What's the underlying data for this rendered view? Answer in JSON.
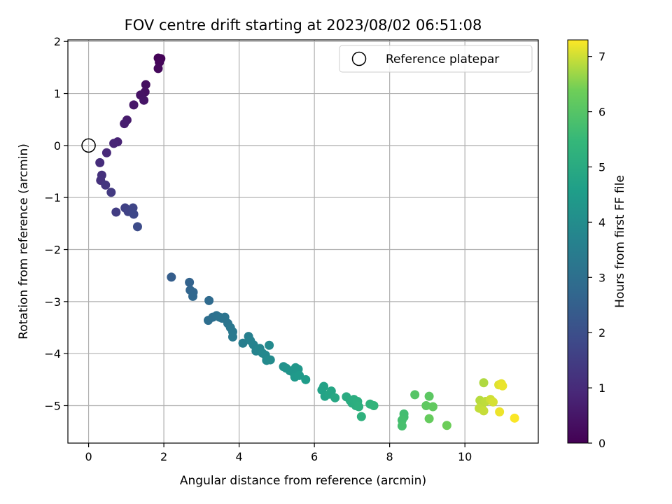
{
  "chart_data": {
    "type": "scatter",
    "title": "FOV centre drift starting at 2023/08/02 06:51:08",
    "xlabel": "Angular distance from reference (arcmin)",
    "ylabel": "Rotation from reference (arcmin)",
    "xlim": [
      -0.55,
      11.95
    ],
    "ylim": [
      -5.72,
      2.03
    ],
    "xticks": [
      0,
      2,
      4,
      6,
      8,
      10
    ],
    "xtick_labels": [
      "0",
      "2",
      "4",
      "6",
      "8",
      "10"
    ],
    "yticks": [
      2,
      1,
      0,
      -1,
      -2,
      -3,
      -4,
      -5
    ],
    "ytick_labels": [
      "2",
      "1",
      "0",
      "−1",
      "−2",
      "−3",
      "−4",
      "−5"
    ],
    "grid": true,
    "legend": {
      "position": "top-right",
      "entries": [
        "Reference platepar"
      ]
    },
    "reference_point": {
      "x": 0,
      "y": 0
    },
    "colorbar": {
      "label": "Hours from first FF file",
      "min": 0,
      "max": 7.3,
      "ticks": [
        0,
        1,
        2,
        3,
        4,
        5,
        6,
        7
      ],
      "tick_labels": [
        "0",
        "1",
        "2",
        "3",
        "4",
        "5",
        "6",
        "7"
      ],
      "colormap": "viridis"
    },
    "points": [
      {
        "x": 1.85,
        "y": 1.68,
        "t": 0.05
      },
      {
        "x": 1.92,
        "y": 1.67,
        "t": 0.08
      },
      {
        "x": 1.88,
        "y": 1.6,
        "t": 0.12
      },
      {
        "x": 1.85,
        "y": 1.48,
        "t": 0.18
      },
      {
        "x": 1.52,
        "y": 1.17,
        "t": 0.3
      },
      {
        "x": 1.5,
        "y": 1.03,
        "t": 0.35
      },
      {
        "x": 1.38,
        "y": 0.97,
        "t": 0.4
      },
      {
        "x": 1.47,
        "y": 0.87,
        "t": 0.45
      },
      {
        "x": 1.2,
        "y": 0.78,
        "t": 0.52
      },
      {
        "x": 1.02,
        "y": 0.49,
        "t": 0.62
      },
      {
        "x": 0.95,
        "y": 0.42,
        "t": 0.68
      },
      {
        "x": 0.77,
        "y": 0.07,
        "t": 0.8
      },
      {
        "x": 0.67,
        "y": 0.04,
        "t": 0.85
      },
      {
        "x": 0.48,
        "y": -0.14,
        "t": 0.95
      },
      {
        "x": 0.3,
        "y": -0.33,
        "t": 1.05
      },
      {
        "x": 0.35,
        "y": -0.57,
        "t": 1.15
      },
      {
        "x": 0.32,
        "y": -0.67,
        "t": 1.2
      },
      {
        "x": 0.45,
        "y": -0.76,
        "t": 1.3
      },
      {
        "x": 0.6,
        "y": -0.9,
        "t": 1.4
      },
      {
        "x": 0.73,
        "y": -1.28,
        "t": 1.5
      },
      {
        "x": 0.97,
        "y": -1.2,
        "t": 1.6
      },
      {
        "x": 1.05,
        "y": -1.27,
        "t": 1.65
      },
      {
        "x": 1.18,
        "y": -1.2,
        "t": 1.72
      },
      {
        "x": 1.2,
        "y": -1.32,
        "t": 1.78
      },
      {
        "x": 1.3,
        "y": -1.56,
        "t": 1.9
      },
      {
        "x": 2.2,
        "y": -2.53,
        "t": 2.45
      },
      {
        "x": 2.68,
        "y": -2.63,
        "t": 2.6
      },
      {
        "x": 2.7,
        "y": -2.78,
        "t": 2.65
      },
      {
        "x": 2.78,
        "y": -2.82,
        "t": 2.7
      },
      {
        "x": 2.77,
        "y": -2.9,
        "t": 2.75
      },
      {
        "x": 3.2,
        "y": -2.98,
        "t": 2.85
      },
      {
        "x": 3.18,
        "y": -3.36,
        "t": 2.95
      },
      {
        "x": 3.3,
        "y": -3.3,
        "t": 3.0
      },
      {
        "x": 3.4,
        "y": -3.27,
        "t": 3.05
      },
      {
        "x": 3.48,
        "y": -3.3,
        "t": 3.08
      },
      {
        "x": 3.55,
        "y": -3.32,
        "t": 3.12
      },
      {
        "x": 3.62,
        "y": -3.3,
        "t": 3.15
      },
      {
        "x": 3.7,
        "y": -3.42,
        "t": 3.2
      },
      {
        "x": 3.77,
        "y": -3.5,
        "t": 3.25
      },
      {
        "x": 3.83,
        "y": -3.58,
        "t": 3.3
      },
      {
        "x": 3.83,
        "y": -3.68,
        "t": 3.35
      },
      {
        "x": 4.1,
        "y": -3.8,
        "t": 3.5
      },
      {
        "x": 4.25,
        "y": -3.67,
        "t": 3.55
      },
      {
        "x": 4.3,
        "y": -3.75,
        "t": 3.6
      },
      {
        "x": 4.38,
        "y": -3.83,
        "t": 3.65
      },
      {
        "x": 4.45,
        "y": -3.95,
        "t": 3.7
      },
      {
        "x": 4.55,
        "y": -3.9,
        "t": 3.75
      },
      {
        "x": 4.62,
        "y": -3.99,
        "t": 3.8
      },
      {
        "x": 4.7,
        "y": -4.03,
        "t": 3.85
      },
      {
        "x": 4.73,
        "y": -4.13,
        "t": 3.9
      },
      {
        "x": 4.8,
        "y": -3.84,
        "t": 3.92
      },
      {
        "x": 4.83,
        "y": -4.12,
        "t": 3.95
      },
      {
        "x": 5.18,
        "y": -4.25,
        "t": 4.15
      },
      {
        "x": 5.25,
        "y": -4.28,
        "t": 4.2
      },
      {
        "x": 5.35,
        "y": -4.33,
        "t": 4.25
      },
      {
        "x": 5.45,
        "y": -4.37,
        "t": 4.3
      },
      {
        "x": 5.5,
        "y": -4.27,
        "t": 4.32
      },
      {
        "x": 5.57,
        "y": -4.3,
        "t": 4.35
      },
      {
        "x": 5.48,
        "y": -4.45,
        "t": 4.4
      },
      {
        "x": 5.6,
        "y": -4.42,
        "t": 4.42
      },
      {
        "x": 5.77,
        "y": -4.5,
        "t": 4.5
      },
      {
        "x": 6.2,
        "y": -4.7,
        "t": 4.7
      },
      {
        "x": 6.25,
        "y": -4.63,
        "t": 4.72
      },
      {
        "x": 6.28,
        "y": -4.82,
        "t": 4.75
      },
      {
        "x": 6.4,
        "y": -4.78,
        "t": 4.8
      },
      {
        "x": 6.45,
        "y": -4.72,
        "t": 4.83
      },
      {
        "x": 6.55,
        "y": -4.85,
        "t": 4.88
      },
      {
        "x": 6.85,
        "y": -4.83,
        "t": 5.0
      },
      {
        "x": 6.95,
        "y": -4.9,
        "t": 5.05
      },
      {
        "x": 7.0,
        "y": -4.95,
        "t": 5.08
      },
      {
        "x": 7.05,
        "y": -4.88,
        "t": 5.1
      },
      {
        "x": 7.1,
        "y": -5.0,
        "t": 5.12
      },
      {
        "x": 7.15,
        "y": -4.92,
        "t": 5.15
      },
      {
        "x": 7.18,
        "y": -5.02,
        "t": 5.18
      },
      {
        "x": 7.25,
        "y": -5.21,
        "t": 5.22
      },
      {
        "x": 7.48,
        "y": -4.97,
        "t": 5.3
      },
      {
        "x": 7.58,
        "y": -5.0,
        "t": 5.35
      },
      {
        "x": 8.38,
        "y": -5.16,
        "t": 5.7
      },
      {
        "x": 8.38,
        "y": -5.22,
        "t": 5.72
      },
      {
        "x": 8.33,
        "y": -5.28,
        "t": 5.75
      },
      {
        "x": 8.33,
        "y": -5.39,
        "t": 5.78
      },
      {
        "x": 8.67,
        "y": -4.79,
        "t": 6.0
      },
      {
        "x": 9.05,
        "y": -4.82,
        "t": 6.1
      },
      {
        "x": 8.97,
        "y": -5.0,
        "t": 6.15
      },
      {
        "x": 9.15,
        "y": -5.02,
        "t": 6.2
      },
      {
        "x": 9.05,
        "y": -5.25,
        "t": 6.25
      },
      {
        "x": 9.52,
        "y": -5.38,
        "t": 6.35
      },
      {
        "x": 10.5,
        "y": -4.56,
        "t": 6.8
      },
      {
        "x": 10.4,
        "y": -4.9,
        "t": 6.85
      },
      {
        "x": 10.45,
        "y": -4.98,
        "t": 6.88
      },
      {
        "x": 10.55,
        "y": -4.92,
        "t": 6.9
      },
      {
        "x": 10.38,
        "y": -5.05,
        "t": 6.92
      },
      {
        "x": 10.5,
        "y": -5.1,
        "t": 6.95
      },
      {
        "x": 10.68,
        "y": -4.88,
        "t": 7.0
      },
      {
        "x": 10.75,
        "y": -4.93,
        "t": 7.05
      },
      {
        "x": 10.9,
        "y": -4.6,
        "t": 7.1
      },
      {
        "x": 10.97,
        "y": -4.58,
        "t": 7.15
      },
      {
        "x": 11.0,
        "y": -4.62,
        "t": 7.18
      },
      {
        "x": 10.92,
        "y": -5.12,
        "t": 7.2
      },
      {
        "x": 11.32,
        "y": -5.24,
        "t": 7.28
      }
    ]
  }
}
